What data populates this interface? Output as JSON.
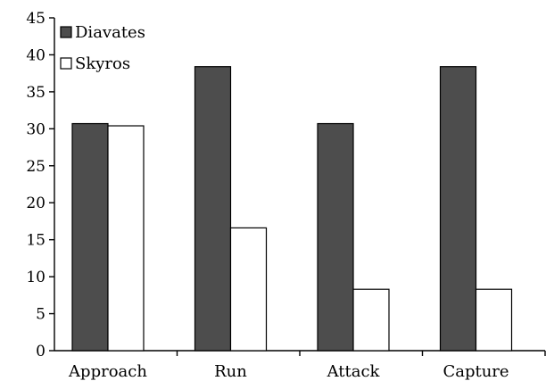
{
  "chart_data": {
    "type": "bar",
    "categories": [
      "Approach",
      "Run",
      "Attack",
      "Capture"
    ],
    "series": [
      {
        "name": "Diavates",
        "values": [
          30.7,
          38.4,
          30.7,
          38.4
        ],
        "color": "#4d4d4d"
      },
      {
        "name": "Skyros",
        "values": [
          30.4,
          16.6,
          8.3,
          8.3
        ],
        "color": "#ffffff"
      }
    ],
    "ylim": [
      0,
      45
    ],
    "yticks": [
      0,
      5,
      10,
      15,
      20,
      25,
      30,
      35,
      40,
      45
    ],
    "title": "",
    "xlabel": "",
    "ylabel": "",
    "legend_position": "top-left",
    "grid": false
  }
}
